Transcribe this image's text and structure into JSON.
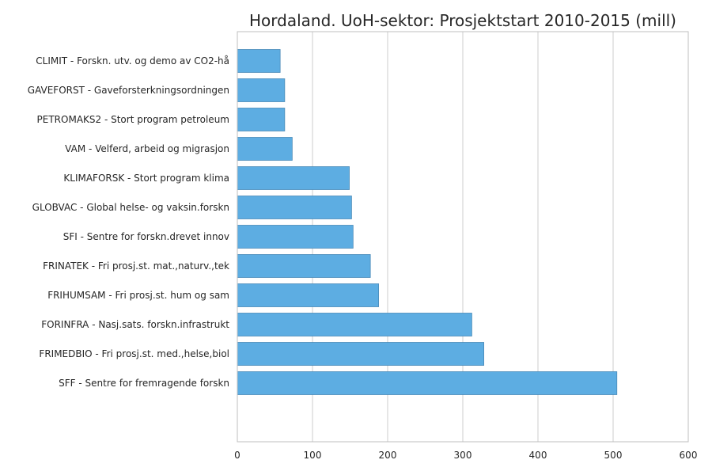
{
  "chart_data": {
    "type": "bar",
    "orientation": "horizontal",
    "title": "Hordaland. UoH-sektor: Prosjektstart 2010-2015 (mill)",
    "xlabel": "",
    "ylabel": "",
    "xlim": [
      0,
      600
    ],
    "xticks": [
      0,
      100,
      200,
      300,
      400,
      500,
      600
    ],
    "grid": true,
    "bar_color": "#5DADE2",
    "categories": [
      "CLIMIT - Forskn. utv. og demo av CO2-hå",
      "GAVEFORST - Gaveforsterkningsordningen",
      "PETROMAKS2 - Stort program petroleum",
      "VAM - Velferd, arbeid og migrasjon",
      "KLIMAFORSK - Stort program klima",
      "GLOBVAC - Global helse- og vaksin.forskn",
      "SFI - Sentre for forskn.drevet innov",
      "FRINATEK - Fri prosj.st. mat.,naturv.,tek",
      "FRIHUMSAM - Fri prosj.st. hum og sam",
      "FORINFRA - Nasj.sats. forskn.infrastrukt",
      "FRIMEDBIO - Fri prosj.st. med.,helse,biol",
      "SFF - Sentre for fremragende forskn"
    ],
    "values": [
      57,
      63,
      63,
      73,
      149,
      152,
      154,
      177,
      188,
      312,
      328,
      505
    ]
  }
}
